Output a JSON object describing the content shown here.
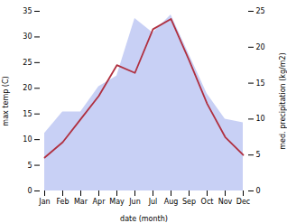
{
  "chart_data": {
    "type": "line",
    "categories": [
      "Jan",
      "Feb",
      "Mar",
      "Apr",
      "May",
      "Jun",
      "Jul",
      "Aug",
      "Sep",
      "Oct",
      "Nov",
      "Dec"
    ],
    "xlabel": "date (month)",
    "ylabel": "max temp (C)",
    "y2label": "med. precipitation (kg/m2)",
    "ylim": [
      0,
      35
    ],
    "yticks": [
      0,
      5,
      10,
      15,
      20,
      25,
      30,
      35
    ],
    "y2lim": [
      0,
      25
    ],
    "y2ticks": [
      0,
      5,
      10,
      15,
      20,
      25
    ],
    "series": [
      {
        "type": "area",
        "axis": "y2",
        "color": "#c8d0f5",
        "values": [
          8.0,
          11.0,
          11.0,
          14.5,
          16.0,
          24.0,
          22.0,
          24.5,
          19.0,
          13.5,
          10.0,
          9.5
        ]
      },
      {
        "type": "line",
        "color": "#b03040",
        "values": [
          6.5,
          9.5,
          14.0,
          18.5,
          24.5,
          23.0,
          31.5,
          33.5,
          25.5,
          17.0,
          10.5,
          7.0
        ]
      }
    ]
  }
}
